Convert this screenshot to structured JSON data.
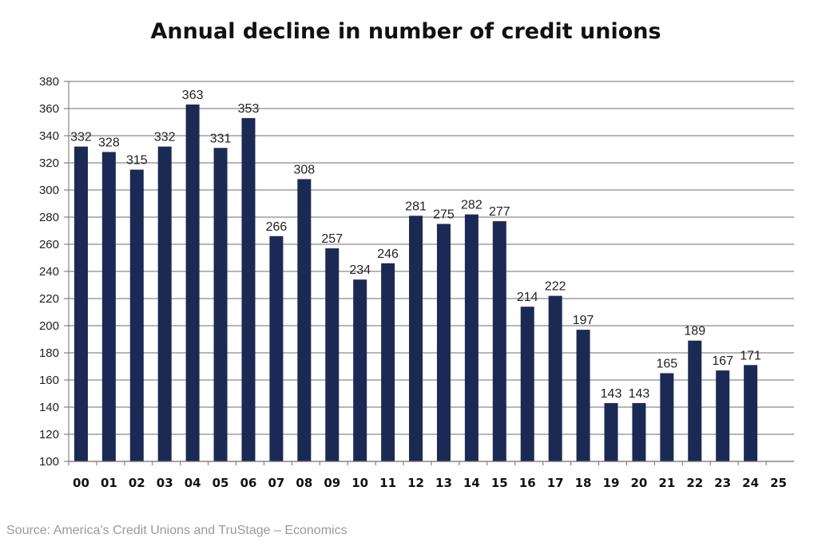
{
  "chart_data": {
    "type": "bar",
    "title": "Annual decline in number of credit unions",
    "xlabel": "",
    "ylabel": "",
    "categories": [
      "00",
      "01",
      "02",
      "03",
      "04",
      "05",
      "06",
      "07",
      "08",
      "09",
      "10",
      "11",
      "12",
      "13",
      "14",
      "15",
      "16",
      "17",
      "18",
      "19",
      "20",
      "21",
      "22",
      "23",
      "24",
      "25"
    ],
    "values": [
      332,
      328,
      315,
      332,
      363,
      331,
      353,
      266,
      308,
      257,
      234,
      246,
      281,
      275,
      282,
      277,
      214,
      222,
      197,
      143,
      143,
      165,
      189,
      167,
      171,
      null
    ],
    "ylim": [
      100,
      380
    ],
    "yticks": [
      100,
      120,
      140,
      160,
      180,
      200,
      220,
      240,
      260,
      280,
      300,
      320,
      340,
      360,
      380
    ],
    "grid": true,
    "bar_color": "#1b2a55",
    "data_labels": true
  },
  "source": "Source: America’s Credit Unions and TruStage – Economics"
}
